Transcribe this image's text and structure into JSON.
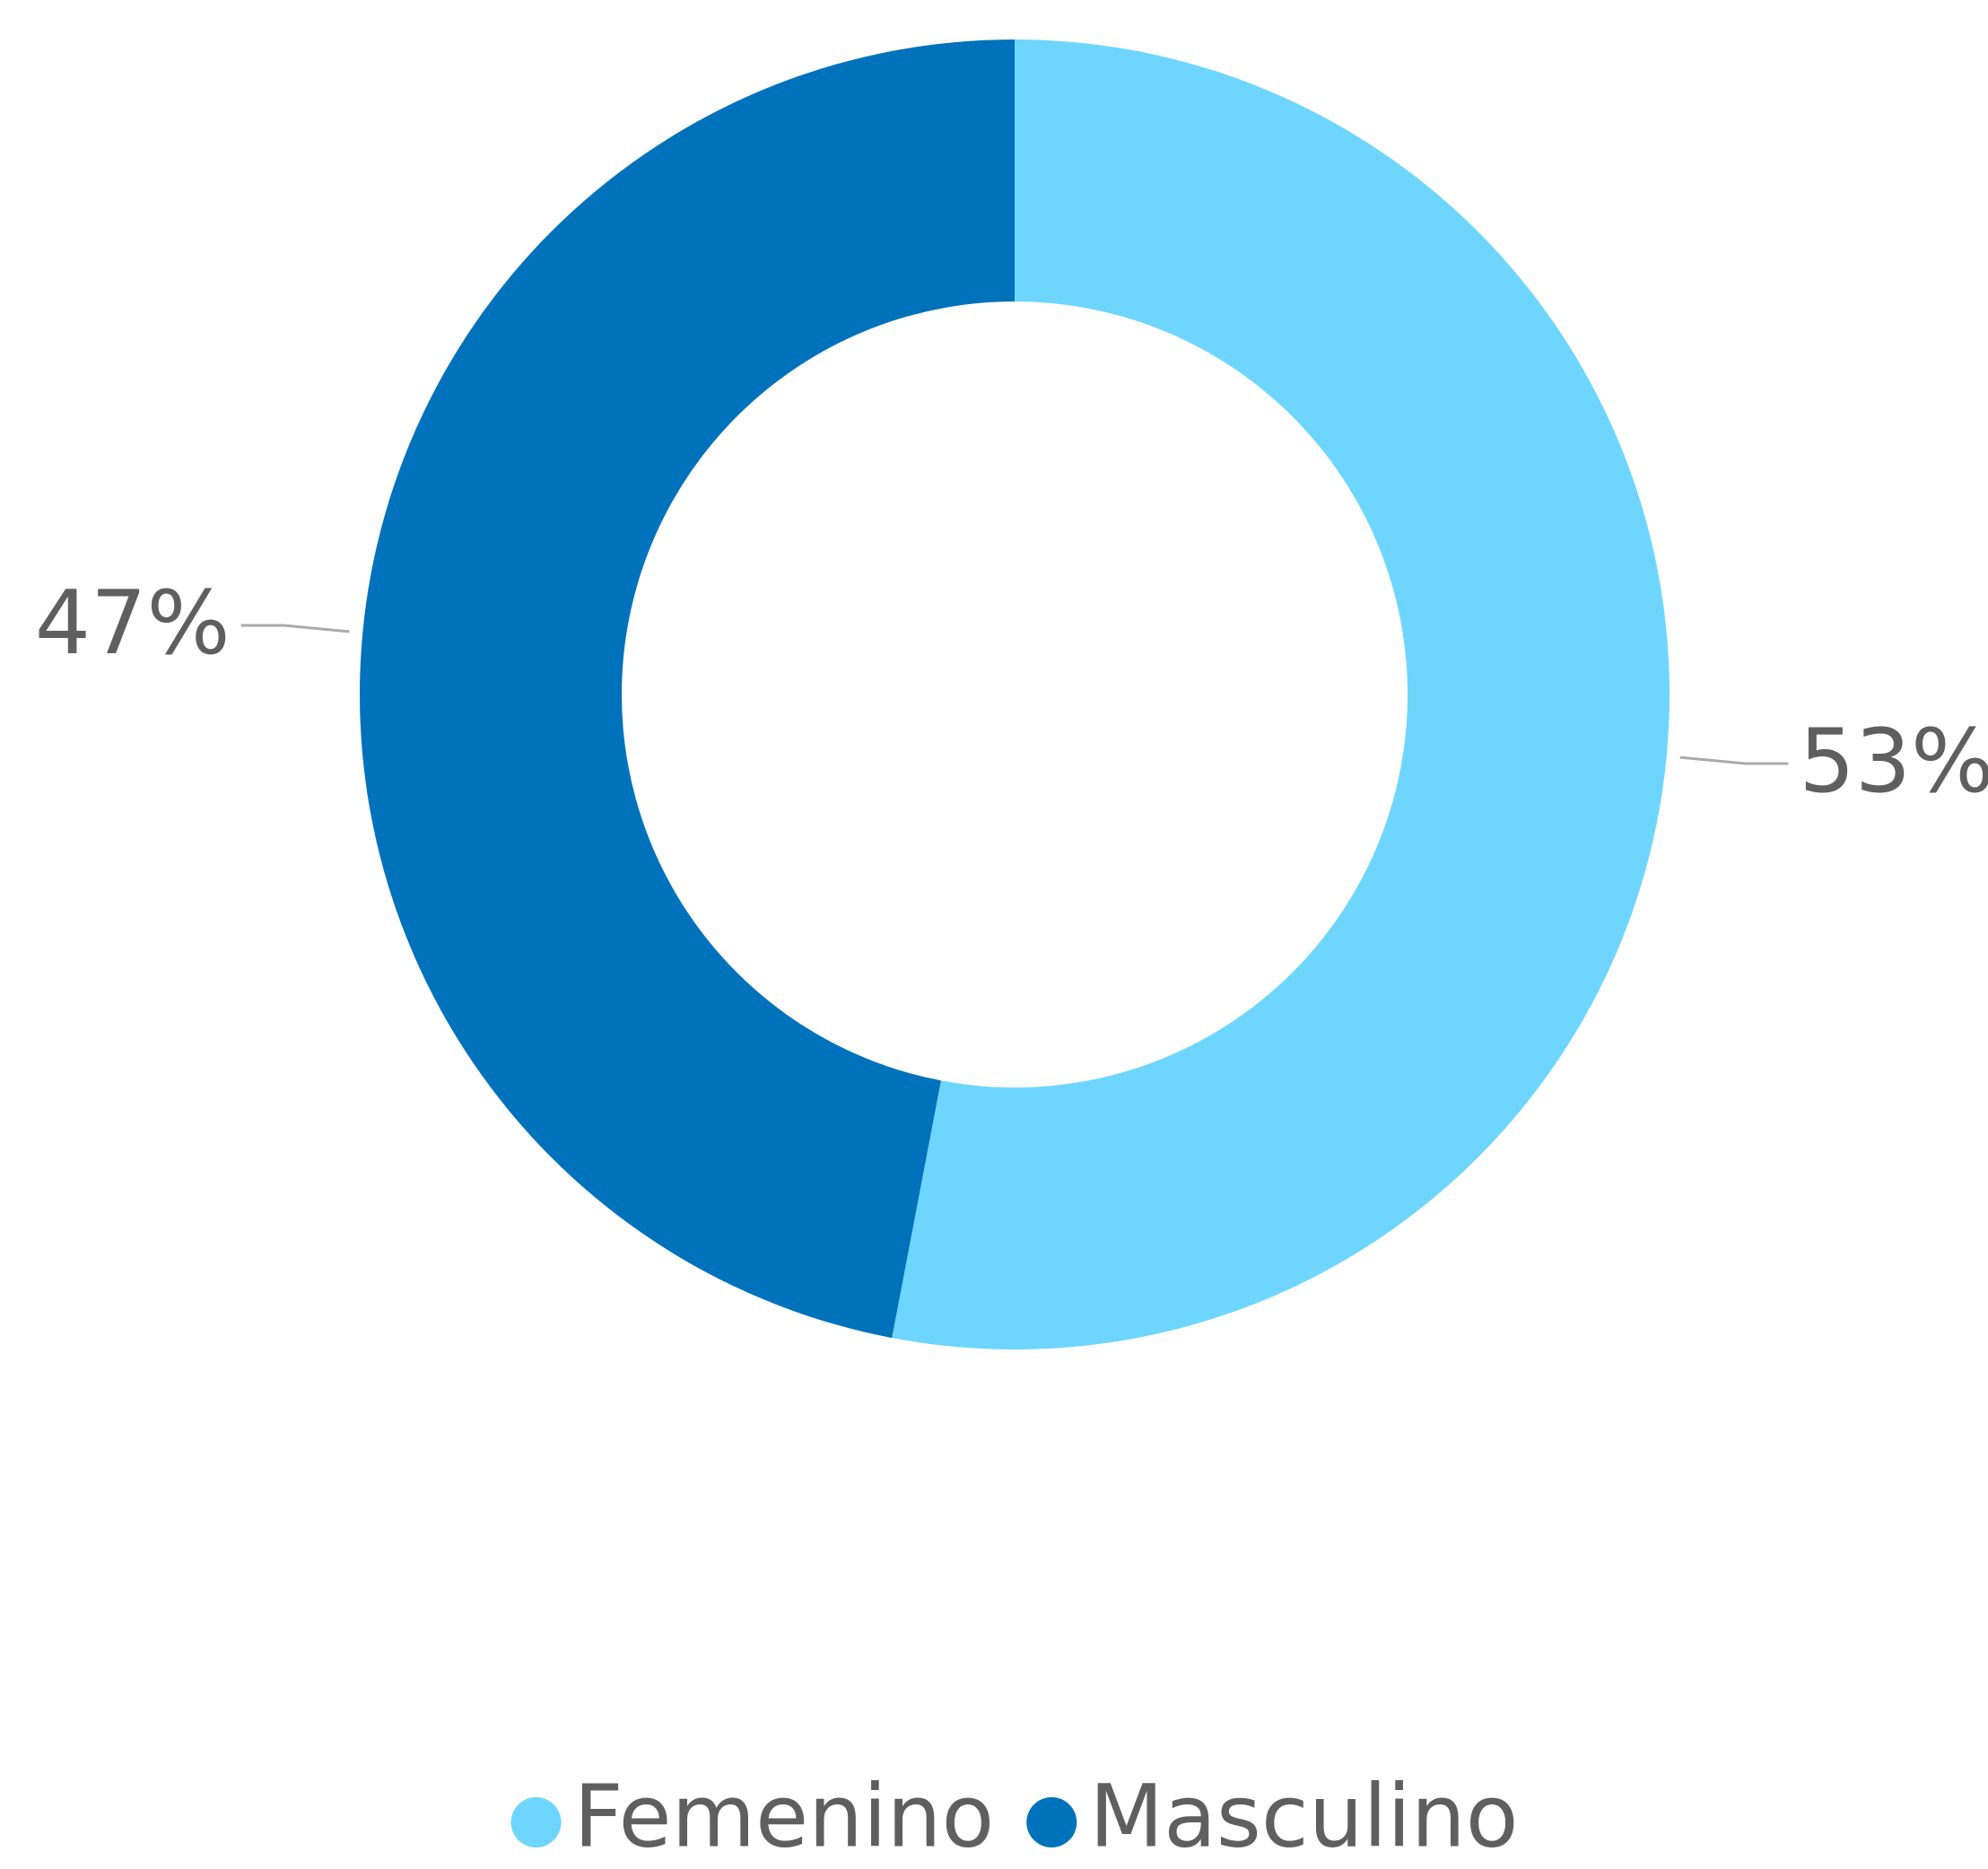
{
  "chart_data": {
    "type": "donut",
    "categories": [
      "Femenino",
      "Masculino"
    ],
    "values": [
      53,
      47
    ],
    "value_labels": [
      "53%",
      "47%"
    ],
    "colors": [
      "#6ed6fe",
      "#0072bb"
    ],
    "legend": "bottom"
  }
}
